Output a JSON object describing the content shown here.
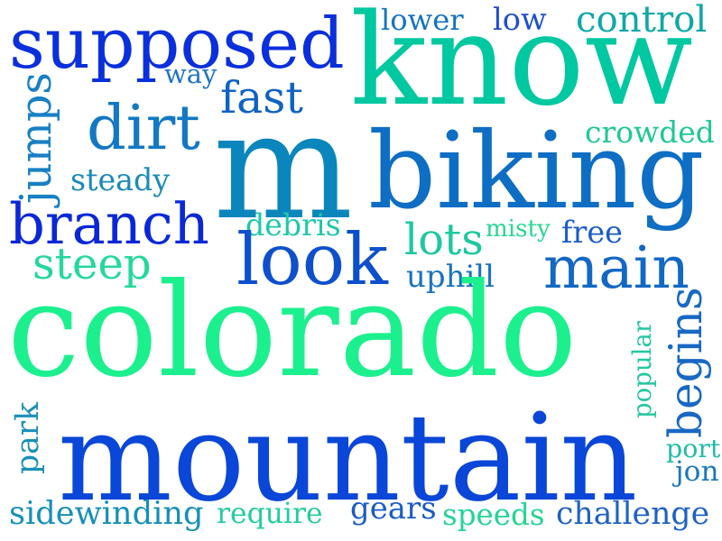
{
  "words": [
    {
      "text": "know",
      "color": "#00c8a0"
    },
    {
      "text": "supposed",
      "color": "#0a2fdc"
    },
    {
      "text": "lower",
      "color": "#1474c2"
    },
    {
      "text": "low",
      "color": "#1e4fd0"
    },
    {
      "text": "control",
      "color": "#10a8a8"
    },
    {
      "text": "way",
      "color": "#1e74c8"
    },
    {
      "text": "fast",
      "color": "#1062c4"
    },
    {
      "text": "dirt",
      "color": "#1278c4"
    },
    {
      "text": "m",
      "color": "#0a86bc"
    },
    {
      "text": "biking",
      "color": "#0e6ec4"
    },
    {
      "text": "crowded",
      "color": "#1ec896"
    },
    {
      "text": "jumps",
      "color": "#1880c4"
    },
    {
      "text": "steady",
      "color": "#1a8ab8"
    },
    {
      "text": "branch",
      "color": "#0a28d8"
    },
    {
      "text": "debris",
      "color": "#1ec8a8"
    },
    {
      "text": "misty",
      "color": "#26d890"
    },
    {
      "text": "free",
      "color": "#1a5cc8"
    },
    {
      "text": "look",
      "color": "#0e50cc"
    },
    {
      "text": "lots",
      "color": "#1ec8a0"
    },
    {
      "text": "main",
      "color": "#1268c4"
    },
    {
      "text": "steep",
      "color": "#24d89c"
    },
    {
      "text": "uphill",
      "color": "#1a72c0"
    },
    {
      "text": "colorado",
      "color": "#1cf08e"
    },
    {
      "text": "begins",
      "color": "#1868c4"
    },
    {
      "text": "popular",
      "color": "#24c8a0"
    },
    {
      "text": "park",
      "color": "#1a90b8"
    },
    {
      "text": "mountain",
      "color": "#0a46d8"
    },
    {
      "text": "port",
      "color": "#20bca8"
    },
    {
      "text": "jon",
      "color": "#1a78bc"
    },
    {
      "text": "sidewinding",
      "color": "#1690b8"
    },
    {
      "text": "require",
      "color": "#24cca0"
    },
    {
      "text": "gears",
      "color": "#1a5cc4"
    },
    {
      "text": "speeds",
      "color": "#24d494"
    },
    {
      "text": "challenge",
      "color": "#1e62c4"
    }
  ]
}
